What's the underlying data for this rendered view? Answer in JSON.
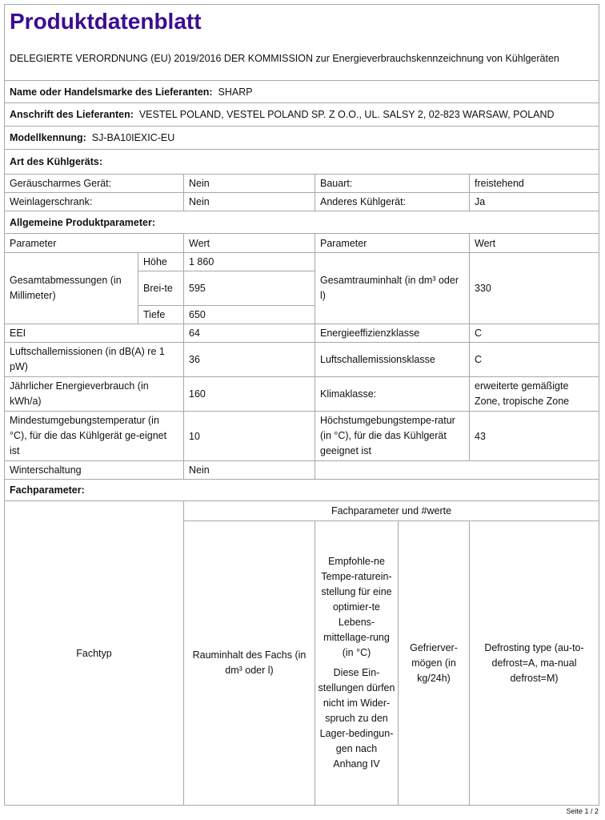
{
  "title": "Produktdatenblatt",
  "regulation": "DELEGIERTE VERORDNUNG (EU) 2019/2016 DER KOMMISSION zur Energieverbrauchskennzeichnung von Kühlgeräten",
  "supplier": {
    "name_label": "Name oder Handelsmarke des Lieferanten:",
    "name": "SHARP",
    "address_label": "Anschrift des Lieferanten:",
    "address": "VESTEL POLAND, VESTEL POLAND SP. Z O.O., UL. SALSY 2, 02-823 WARSAW, POLAND"
  },
  "model": {
    "label": "Modellkennung:",
    "value": "SJ-BA10IEXIC-EU"
  },
  "type": {
    "heading": "Art des Kühlgeräts:",
    "rows": [
      {
        "l1": "Geräuscharmes Gerät:",
        "v1": "Nein",
        "l2": "Bauart:",
        "v2": "freistehend"
      },
      {
        "l1": "Weinlagerschrank:",
        "v1": "Nein",
        "l2": "Anderes Kühlgerät:",
        "v2": "Ja"
      }
    ]
  },
  "general": {
    "heading": "Allgemeine Produktparameter:",
    "col_param": "Parameter",
    "col_value": "Wert",
    "dimensions_label": "Gesamtabmessungen (in Millimeter)",
    "height_label": "Höhe",
    "height": "1 860",
    "width_label": "Brei-te",
    "width": "595",
    "depth_label": "Tiefe",
    "depth": "650",
    "volume_label": "Gesamtrauminhalt (in dm³ oder l)",
    "volume": "330",
    "rows": [
      {
        "l1": "EEI",
        "v1": "64",
        "l2": "Energieeffizienzklasse",
        "v2": "C"
      },
      {
        "l1": "Luftschallemissionen (in dB(A) re 1 pW)",
        "v1": "36",
        "l2": "Luftschallemissionsklasse",
        "v2": "C"
      },
      {
        "l1": "Jährlicher Energieverbrauch (in kWh/a)",
        "v1": "160",
        "l2": "Klimaklasse:",
        "v2": "erweiterte gemäßigte Zone, tropische Zone"
      },
      {
        "l1": "Mindestumgebungstemperatur (in °C), für die das Kühlgerät ge-eignet ist",
        "v1": "10",
        "l2": "Höchstumgebungstempe-ratur (in °C), für die das Kühlgerät geeignet ist",
        "v2": "43"
      }
    ],
    "winter_label": "Winterschaltung",
    "winter": "Nein"
  },
  "compartment": {
    "heading": "Fachparameter:",
    "group_header": "Fachparameter und #werte",
    "col_type": "Fachtyp",
    "col_volume": "Rauminhalt des Fachs (in dm³ oder l)",
    "col_temp": "Empfohle-ne Tempe-raturein-stellung für eine optimier-te Lebens-mittellage-rung (in °C)",
    "col_temp_note": "Diese Ein-stellungen dürfen nicht im Wider-spruch zu den Lager-bedingun-gen nach Anhang IV",
    "col_freeze": "Gefrierver-mögen (in kg/24h)",
    "col_defrost": "Defrosting type (au-to-defrost=A, ma-nual defrost=M)"
  },
  "footer": "Seite 1 / 2"
}
